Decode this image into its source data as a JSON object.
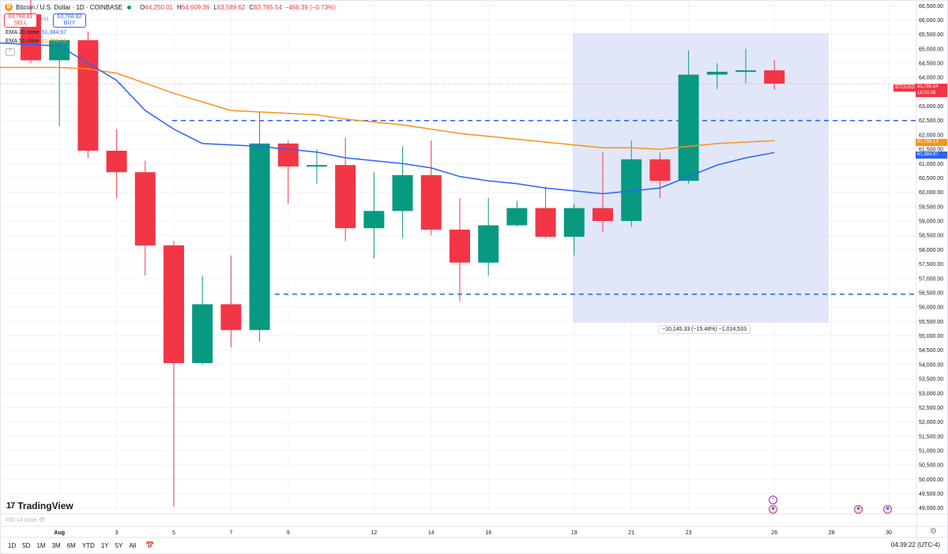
{
  "header": {
    "symbol_title": "Bitcoin / U.S. Dollar · 1D · COINBASE",
    "open_label": "O",
    "open": "64,250.01",
    "high_label": "H",
    "high": "64,609.36",
    "low_label": "L",
    "low": "63,589.62",
    "close_label": "C",
    "close": "63,785.54",
    "change": "−466.39 (−0.73%)"
  },
  "trade": {
    "sell_price": "63,788.81",
    "sell_label": "SELL",
    "buy_price": "63,788.82",
    "buy_label": "BUY",
    "spread": "0.01"
  },
  "indicators": {
    "ema20_label": "EMA 20 close",
    "ema20_value": "61,384.97",
    "ema50_label": "EMA 50 close",
    "ema50_value": "61,799.13"
  },
  "branding": {
    "logo_text": "TradingView",
    "logo_mark": "17"
  },
  "rsi_label": "RSI 14 close",
  "toolbar": {
    "timeframes": [
      "1D",
      "5D",
      "1M",
      "3M",
      "6M",
      "YTD",
      "1Y",
      "5Y",
      "All"
    ],
    "clock": "04:39:22 (UTC-4)"
  },
  "price_tags": {
    "symbol": "BTCUSD",
    "last": "63,785.54",
    "timer": "19:20:38",
    "ema50": "61,799.13",
    "ema20": "61,384.97"
  },
  "measure_label": "−10,145.33 (−15.48%) −1,014,533",
  "colors": {
    "up": "#089981",
    "down": "#f23645",
    "ema20": "#2962ff",
    "ema50": "#f7931a",
    "hline": "#2962ff",
    "measure_fill": "#dce3f8",
    "grid": "#f0f3fa"
  },
  "chart_data": {
    "type": "candlestick",
    "x_tick_labels": [
      "Aug",
      "3",
      "5",
      "7",
      "9",
      "12",
      "14",
      "16",
      "19",
      "21",
      "23",
      "26",
      "28",
      "30"
    ],
    "y_tick_labels": [
      "49,000.00",
      "49,500.00",
      "50,000.00",
      "50,500.00",
      "51,000.00",
      "51,500.00",
      "52,000.00",
      "52,500.00",
      "53,000.00",
      "53,500.00",
      "54,000.00",
      "54,500.00",
      "55,000.00",
      "55,500.00",
      "56,000.00",
      "56,500.00",
      "57,000.00",
      "57,500.00",
      "58,000.00",
      "58,500.00",
      "59,000.00",
      "59,500.00",
      "60,000.00",
      "60,500.00",
      "61,000.00",
      "61,500.00",
      "62,000.00",
      "62,500.00",
      "63,000.00",
      "63,500.00",
      "64,000.00",
      "64,500.00",
      "65,000.00",
      "65,500.00",
      "66,000.00",
      "66,500.00"
    ],
    "ylim": [
      48800,
      66700
    ],
    "candles": [
      {
        "date": "Jul 31",
        "open": 66200,
        "high": 66800,
        "low": 64500,
        "close": 64600
      },
      {
        "date": "Aug 1",
        "open": 64600,
        "high": 65300,
        "low": 62300,
        "close": 65300
      },
      {
        "date": "Aug 2",
        "open": 65300,
        "high": 65600,
        "low": 61200,
        "close": 61450
      },
      {
        "date": "Aug 3",
        "open": 61450,
        "high": 62200,
        "low": 59800,
        "close": 60700
      },
      {
        "date": "Aug 4",
        "open": 60700,
        "high": 61100,
        "low": 57100,
        "close": 58150
      },
      {
        "date": "Aug 5",
        "open": 58150,
        "high": 58300,
        "low": 49050,
        "close": 54050
      },
      {
        "date": "Aug 6",
        "open": 54050,
        "high": 57100,
        "low": 54000,
        "close": 56100
      },
      {
        "date": "Aug 7",
        "open": 56100,
        "high": 57800,
        "low": 54600,
        "close": 55200
      },
      {
        "date": "Aug 8",
        "open": 55200,
        "high": 62800,
        "low": 54800,
        "close": 61700
      },
      {
        "date": "Aug 9",
        "open": 61700,
        "high": 61800,
        "low": 59600,
        "close": 60900
      },
      {
        "date": "Aug 10",
        "open": 60900,
        "high": 61500,
        "low": 60300,
        "close": 60950
      },
      {
        "date": "Aug 11",
        "open": 60950,
        "high": 61900,
        "low": 58300,
        "close": 58750
      },
      {
        "date": "Aug 12",
        "open": 58750,
        "high": 60700,
        "low": 57700,
        "close": 59350
      },
      {
        "date": "Aug 13",
        "open": 59350,
        "high": 61600,
        "low": 58400,
        "close": 60600
      },
      {
        "date": "Aug 14",
        "open": 60600,
        "high": 61800,
        "low": 58500,
        "close": 58700
      },
      {
        "date": "Aug 15",
        "open": 58700,
        "high": 59800,
        "low": 56200,
        "close": 57550
      },
      {
        "date": "Aug 16",
        "open": 57550,
        "high": 59800,
        "low": 57100,
        "close": 58850
      },
      {
        "date": "Aug 17",
        "open": 58850,
        "high": 59700,
        "low": 58800,
        "close": 59450
      },
      {
        "date": "Aug 18",
        "open": 59450,
        "high": 60200,
        "low": 58400,
        "close": 58450
      },
      {
        "date": "Aug 19",
        "open": 58450,
        "high": 59600,
        "low": 57800,
        "close": 59450
      },
      {
        "date": "Aug 20",
        "open": 59450,
        "high": 61400,
        "low": 58600,
        "close": 59000
      },
      {
        "date": "Aug 21",
        "open": 59000,
        "high": 61800,
        "low": 58800,
        "close": 61150
      },
      {
        "date": "Aug 22",
        "open": 61150,
        "high": 61400,
        "low": 59800,
        "close": 60400
      },
      {
        "date": "Aug 23",
        "open": 60400,
        "high": 64950,
        "low": 60300,
        "close": 64100
      },
      {
        "date": "Aug 24",
        "open": 64100,
        "high": 64500,
        "low": 63600,
        "close": 64200
      },
      {
        "date": "Aug 25",
        "open": 64200,
        "high": 65000,
        "low": 63800,
        "close": 64250
      },
      {
        "date": "Aug 26",
        "open": 64250,
        "high": 64609.36,
        "low": 63589.62,
        "close": 63785.54
      }
    ],
    "ema20": [
      65200,
      65100,
      64500,
      63900,
      62850,
      62200,
      61700,
      61650,
      61600,
      61500,
      61400,
      61200,
      61100,
      61000,
      60850,
      60550,
      60400,
      60300,
      60150,
      60050,
      59950,
      60050,
      60150,
      60550,
      60950,
      61200,
      61384.97
    ],
    "ema50": [
      64350,
      64350,
      64300,
      64150,
      63800,
      63450,
      63150,
      62850,
      62800,
      62750,
      62700,
      62550,
      62450,
      62350,
      62200,
      62050,
      61950,
      61850,
      61750,
      61650,
      61550,
      61550,
      61500,
      61600,
      61700,
      61750,
      61799.13
    ],
    "horizontal_lines": [
      62500,
      56450
    ],
    "measure_range": {
      "from": "Aug 19",
      "to": "Aug 28",
      "high": 65550,
      "low": 55450
    },
    "last_price": 63785.54
  }
}
